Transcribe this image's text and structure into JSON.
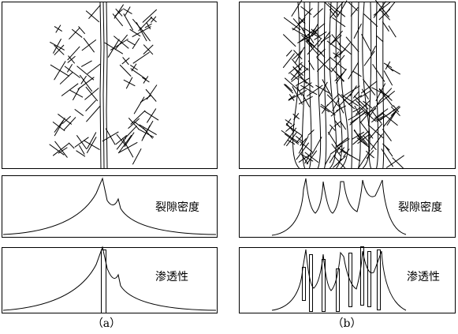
{
  "panels": [
    {
      "density_label": "裂隙密度",
      "permeability_label": "渗透性",
      "caption": "（a）"
    },
    {
      "density_label": "裂隙密度",
      "permeability_label": "渗透性",
      "caption": "（b）"
    }
  ]
}
